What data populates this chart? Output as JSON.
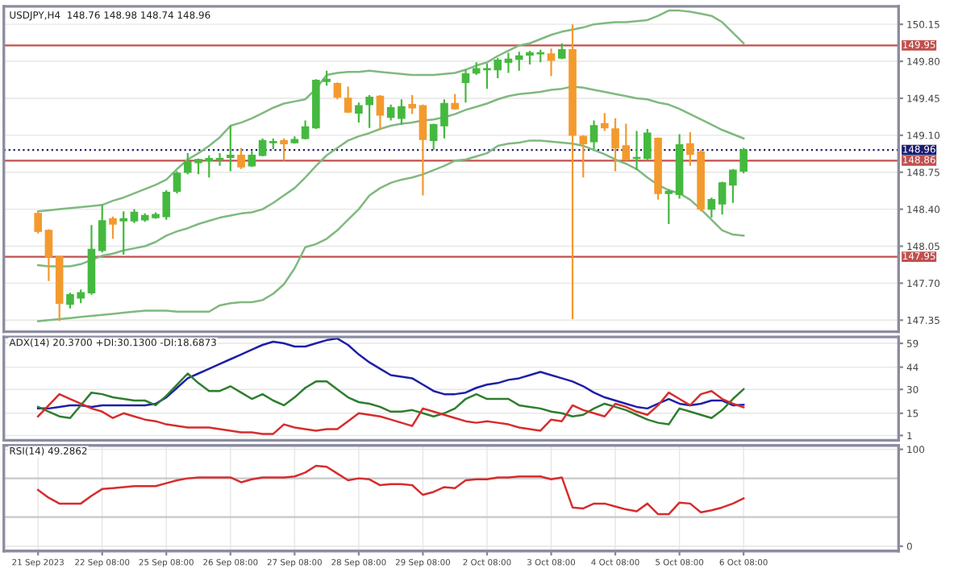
{
  "chart_data": [
    {
      "type": "candlestick",
      "title": "USDJPY,H4  148.76 148.98 148.74 148.96",
      "categories": [
        null,
        null,
        null,
        null,
        null,
        null,
        null,
        null,
        null,
        null,
        null,
        null,
        null,
        null,
        null,
        null,
        null,
        null,
        null,
        null,
        null,
        null,
        null,
        null,
        null,
        null,
        null,
        null,
        null,
        null,
        null,
        null,
        null,
        null,
        null,
        null,
        null,
        null,
        null,
        null,
        null,
        null,
        null,
        null,
        null,
        null,
        null,
        null,
        null,
        null,
        null,
        null,
        null,
        null,
        null,
        null,
        null,
        null,
        null,
        null,
        null,
        null,
        null,
        null,
        null,
        null,
        null
      ],
      "ohlc": [
        [
          148.36,
          148.38,
          148.17,
          148.19
        ],
        [
          148.2,
          148.21,
          147.72,
          147.95
        ],
        [
          147.95,
          147.96,
          147.34,
          147.51
        ],
        [
          147.5,
          147.61,
          147.46,
          147.59
        ],
        [
          147.56,
          147.64,
          147.51,
          147.61
        ],
        [
          147.61,
          148.25,
          147.59,
          148.02
        ],
        [
          148.01,
          148.44,
          147.99,
          148.29
        ],
        [
          148.31,
          148.33,
          148.12,
          148.26
        ],
        [
          148.29,
          148.38,
          147.97,
          148.31
        ],
        [
          148.29,
          148.4,
          148.27,
          148.37
        ],
        [
          148.3,
          148.36,
          148.28,
          148.34
        ],
        [
          148.32,
          148.37,
          148.31,
          148.35
        ],
        [
          148.33,
          148.58,
          148.3,
          148.56
        ],
        [
          148.57,
          148.76,
          148.55,
          148.74
        ],
        [
          148.75,
          148.93,
          148.73,
          148.85
        ],
        [
          148.84,
          148.88,
          148.73,
          148.87
        ],
        [
          148.86,
          148.91,
          148.7,
          148.88
        ],
        [
          148.87,
          148.93,
          148.81,
          148.88
        ],
        [
          148.89,
          149.19,
          148.76,
          148.91
        ],
        [
          148.91,
          148.98,
          148.78,
          148.8
        ],
        [
          148.81,
          148.95,
          148.8,
          148.91
        ],
        [
          148.91,
          149.07,
          148.9,
          149.05
        ],
        [
          149.03,
          149.07,
          148.97,
          149.04
        ],
        [
          149.05,
          149.07,
          148.86,
          149.02
        ],
        [
          149.03,
          149.09,
          149.02,
          149.06
        ],
        [
          149.07,
          149.24,
          149.06,
          149.18
        ],
        [
          149.17,
          149.63,
          149.16,
          149.62
        ],
        [
          149.61,
          149.71,
          149.57,
          149.63
        ],
        [
          149.59,
          149.6,
          149.44,
          149.46
        ],
        [
          149.45,
          149.56,
          149.31,
          149.32
        ],
        [
          149.31,
          149.41,
          149.22,
          149.38
        ],
        [
          149.39,
          149.48,
          149.17,
          149.46
        ],
        [
          149.47,
          149.48,
          149.15,
          149.29
        ],
        [
          149.27,
          149.39,
          149.24,
          149.36
        ],
        [
          149.26,
          149.44,
          149.2,
          149.37
        ],
        [
          149.39,
          149.48,
          149.3,
          149.36
        ],
        [
          149.38,
          149.39,
          148.53,
          149.06
        ],
        [
          149.05,
          149.21,
          148.96,
          149.2
        ],
        [
          149.19,
          149.44,
          149.07,
          149.4
        ],
        [
          149.4,
          149.49,
          149.34,
          149.35
        ],
        [
          149.6,
          149.72,
          149.41,
          149.68
        ],
        [
          149.69,
          149.79,
          149.67,
          149.73
        ],
        [
          149.72,
          149.78,
          149.54,
          149.73
        ],
        [
          149.72,
          149.83,
          149.64,
          149.81
        ],
        [
          149.79,
          149.88,
          149.69,
          149.82
        ],
        [
          149.82,
          149.89,
          149.71,
          149.85
        ],
        [
          149.86,
          149.9,
          149.77,
          149.88
        ],
        [
          149.87,
          149.91,
          149.79,
          149.88
        ],
        [
          149.87,
          149.92,
          149.66,
          149.81
        ],
        [
          149.83,
          149.97,
          149.82,
          149.91
        ],
        [
          149.91,
          150.15,
          147.36,
          149.1
        ],
        [
          149.09,
          149.1,
          148.7,
          149.02
        ],
        [
          149.04,
          149.24,
          148.97,
          149.19
        ],
        [
          149.21,
          149.31,
          149.14,
          149.17
        ],
        [
          149.16,
          149.26,
          148.76,
          148.98
        ],
        [
          149.0,
          149.21,
          148.86,
          148.87
        ],
        [
          148.88,
          149.14,
          148.77,
          148.89
        ],
        [
          148.88,
          149.16,
          148.87,
          149.12
        ],
        [
          149.07,
          149.08,
          148.49,
          148.55
        ],
        [
          148.55,
          148.59,
          148.26,
          148.57
        ],
        [
          148.54,
          149.11,
          148.5,
          149.01
        ],
        [
          149.02,
          149.13,
          148.81,
          148.92
        ],
        [
          148.94,
          148.96,
          148.38,
          148.4
        ],
        [
          148.4,
          148.51,
          148.32,
          148.49
        ],
        [
          148.45,
          148.66,
          148.35,
          148.65
        ],
        [
          148.63,
          148.78,
          148.46,
          148.77
        ],
        [
          148.76,
          148.98,
          148.74,
          148.96
        ]
      ],
      "colors": [
        "#f39a2e",
        "#f39a2e",
        "#f39a2e",
        "#45b93f",
        "#45b93f",
        "#45b93f",
        "#45b93f",
        "#f39a2e",
        "#45b93f",
        "#45b93f",
        "#45b93f",
        "#45b93f",
        "#45b93f",
        "#45b93f",
        "#45b93f",
        "#45b93f",
        "#45b93f",
        "#45b93f",
        "#45b93f",
        "#f39a2e",
        "#45b93f",
        "#45b93f",
        "#45b93f",
        "#f39a2e",
        "#45b93f",
        "#45b93f",
        "#45b93f",
        "#45b93f",
        "#f39a2e",
        "#f39a2e",
        "#45b93f",
        "#45b93f",
        "#f39a2e",
        "#45b93f",
        "#45b93f",
        "#f39a2e",
        "#f39a2e",
        "#45b93f",
        "#45b93f",
        "#f39a2e",
        "#45b93f",
        "#45b93f",
        "#45b93f",
        "#45b93f",
        "#45b93f",
        "#45b93f",
        "#45b93f",
        "#45b93f",
        "#f39a2e",
        "#45b93f",
        "#f39a2e",
        "#f39a2e",
        "#45b93f",
        "#f39a2e",
        "#f39a2e",
        "#f39a2e",
        "#45b93f",
        "#45b93f",
        "#f39a2e",
        "#45b93f",
        "#45b93f",
        "#f39a2e",
        "#f39a2e",
        "#45b93f",
        "#45b93f",
        "#45b93f",
        "#45b93f"
      ],
      "series": [
        {
          "type": "line",
          "color": "#7fb97f",
          "values": [
            148.38,
            148.39,
            148.4,
            148.41,
            148.42,
            148.43,
            148.44,
            148.48,
            148.51,
            148.55,
            148.59,
            148.63,
            148.68,
            148.78,
            148.87,
            148.93,
            149.0,
            149.08,
            149.19,
            149.22,
            149.26,
            149.31,
            149.36,
            149.4,
            149.42,
            149.44,
            149.54,
            149.67,
            149.69,
            149.7,
            149.7,
            149.71,
            149.7,
            149.69,
            149.68,
            149.67,
            149.67,
            149.67,
            149.68,
            149.69,
            149.72,
            149.76,
            149.79,
            149.85,
            149.9,
            149.95,
            149.97,
            150.01,
            150.05,
            150.08,
            150.1,
            150.12,
            150.15,
            150.16,
            150.17,
            150.17,
            150.18,
            150.19,
            150.23,
            150.28,
            150.28,
            150.27,
            150.25,
            150.23,
            150.17,
            150.07,
            149.97
          ]
        },
        {
          "type": "line",
          "color": "#7fb97f",
          "values": [
            147.87,
            147.86,
            147.86,
            147.86,
            147.88,
            147.92,
            147.96,
            147.98,
            148.01,
            148.03,
            148.05,
            148.09,
            148.15,
            148.19,
            148.22,
            148.26,
            148.29,
            148.32,
            148.34,
            148.36,
            148.37,
            148.4,
            148.46,
            148.53,
            148.6,
            148.7,
            148.81,
            148.91,
            148.98,
            149.05,
            149.09,
            149.12,
            149.16,
            149.19,
            149.21,
            149.22,
            149.24,
            149.25,
            149.27,
            149.3,
            149.34,
            149.37,
            149.4,
            149.44,
            149.47,
            149.49,
            149.5,
            149.51,
            149.53,
            149.54,
            149.56,
            149.55,
            149.53,
            149.51,
            149.49,
            149.47,
            149.45,
            149.44,
            149.41,
            149.39,
            149.35,
            149.3,
            149.25,
            149.2,
            149.15,
            149.11,
            149.07
          ]
        },
        {
          "type": "line",
          "color": "#7fb97f",
          "values": [
            147.34,
            147.35,
            147.36,
            147.37,
            147.38,
            147.39,
            147.4,
            147.41,
            147.42,
            147.43,
            147.44,
            147.44,
            147.44,
            147.43,
            147.43,
            147.43,
            147.43,
            147.49,
            147.51,
            147.52,
            147.52,
            147.54,
            147.6,
            147.69,
            147.84,
            148.04,
            148.07,
            148.12,
            148.2,
            148.3,
            148.4,
            148.53,
            148.6,
            148.65,
            148.68,
            148.7,
            148.73,
            148.77,
            148.81,
            148.86,
            148.87,
            148.9,
            148.93,
            149.0,
            149.02,
            149.03,
            149.05,
            149.05,
            149.04,
            149.03,
            149.02,
            149.0,
            148.96,
            148.92,
            148.87,
            148.83,
            148.78,
            148.7,
            148.63,
            148.58,
            148.55,
            148.49,
            148.4,
            148.3,
            148.2,
            148.16,
            148.15
          ]
        }
      ],
      "ylim": [
        147.24,
        150.32
      ],
      "yticks": [
        150.15,
        {
          "value": 149.8,
          "label": "149.80"
        },
        149.45,
        {
          "value": 149.1,
          "label": "149.10"
        },
        148.75,
        {
          "value": 148.4,
          "label": "148.40"
        },
        148.05,
        {
          "value": 147.7,
          "label": "147.70"
        },
        147.35
      ],
      "ref_lines": [
        {
          "axis": "y",
          "value": 149.95,
          "label": "149.95",
          "color": "#c0504d"
        },
        {
          "axis": "y",
          "value": 148.96,
          "label": "148.96",
          "color": "#1c1c6e",
          "line_style": "dotted"
        },
        {
          "axis": "y",
          "value": 148.86,
          "label": "148.86",
          "color": "#c0504d"
        },
        {
          "axis": "y",
          "value": 147.95,
          "label": "147.95",
          "color": "#c0504d"
        }
      ],
      "grid": true,
      "tick_labels": "y"
    },
    {
      "type": "line",
      "title": "ADX(14) 20.3700 +DI:30.1300 -DI:18.6873",
      "categories": [
        null,
        null,
        null,
        null,
        null,
        null,
        null,
        null,
        null,
        null,
        null,
        null,
        null,
        null,
        null,
        null,
        null,
        null,
        null,
        null,
        null,
        null,
        null,
        null,
        null,
        null,
        null,
        null,
        null,
        null,
        null,
        null,
        null,
        null,
        null,
        null,
        null,
        null,
        null,
        null,
        null,
        null,
        null,
        null,
        null,
        null,
        null,
        null,
        null,
        null,
        null,
        null,
        null,
        null,
        null,
        null,
        null,
        null,
        null,
        null,
        null,
        null,
        null,
        null,
        null,
        null,
        null
      ],
      "series": [
        {
          "color": "#1f1fa8",
          "values": [
            18,
            18,
            19,
            20,
            20,
            19,
            20,
            20,
            20,
            20,
            20,
            21,
            25,
            31,
            37,
            40,
            43,
            46,
            49,
            52,
            55,
            58,
            60,
            59,
            57,
            57,
            59,
            61,
            62,
            58,
            52,
            47,
            43,
            39,
            38,
            37,
            33,
            29,
            27,
            27,
            28,
            31,
            33,
            34,
            36,
            37,
            39,
            41,
            39,
            37,
            35,
            32,
            28,
            25,
            23,
            21,
            19,
            18,
            21,
            24,
            21,
            20,
            21,
            23,
            23,
            20,
            20.37
          ]
        },
        {
          "color": "#2f7d2f",
          "values": [
            19,
            16,
            13,
            12,
            20,
            28,
            27,
            25,
            24,
            23,
            23,
            20,
            26,
            33,
            40,
            34,
            29,
            29,
            32,
            28,
            24,
            27,
            23,
            20,
            25,
            31,
            35,
            35,
            30,
            25,
            22,
            21,
            19,
            16,
            16,
            17,
            15,
            13,
            15,
            18,
            24,
            27,
            24,
            24,
            24,
            20,
            19,
            18,
            16,
            15,
            13,
            14,
            18,
            21,
            19,
            17,
            14,
            11,
            9,
            8,
            18,
            16,
            14,
            12,
            17,
            24,
            30.13
          ]
        },
        {
          "color": "#d62d2d",
          "values": [
            13,
            20,
            27,
            24,
            21,
            18,
            16,
            12,
            15,
            13,
            11,
            10,
            8,
            7,
            6,
            6,
            6,
            5,
            4,
            3,
            3,
            2,
            2,
            8,
            6,
            5,
            4,
            5,
            5,
            10,
            15,
            14,
            13,
            11,
            9,
            7,
            18,
            16,
            14,
            12,
            10,
            9,
            10,
            9,
            8,
            6,
            5,
            4,
            11,
            10,
            20,
            17,
            15,
            13,
            21,
            19,
            16,
            14,
            20,
            28,
            24,
            20,
            27,
            29,
            24,
            21,
            18.69
          ]
        }
      ],
      "ylim": [
        -2,
        63
      ],
      "yticks": [
        59,
        44,
        30,
        15,
        1
      ],
      "grid": true,
      "tick_labels": "y"
    },
    {
      "type": "line",
      "title": "RSI(14) 49.2862",
      "categories": [
        "21 Sep 2023",
        null,
        null,
        null,
        null,
        null,
        "22 Sep 08:00",
        null,
        null,
        null,
        null,
        null,
        "25 Sep 08:00",
        null,
        null,
        null,
        null,
        null,
        "26 Sep 08:00",
        null,
        null,
        null,
        null,
        null,
        "27 Sep 08:00",
        null,
        null,
        null,
        null,
        null,
        "28 Sep 08:00",
        null,
        null,
        null,
        null,
        null,
        "29 Sep 08:00",
        null,
        null,
        null,
        null,
        null,
        "2 Oct 08:00",
        null,
        null,
        null,
        null,
        null,
        "3 Oct 08:00",
        null,
        null,
        null,
        null,
        null,
        "4 Oct 08:00",
        null,
        null,
        null,
        null,
        null,
        "5 Oct 08:00",
        null,
        null,
        null,
        null,
        null,
        "6 Oct 08:00"
      ],
      "series": [
        {
          "color": "#d62d2d",
          "values": [
            58,
            50,
            44,
            44,
            44,
            52,
            59,
            60,
            61,
            62,
            62,
            62,
            65,
            68,
            70,
            71,
            71,
            71,
            71,
            66,
            69,
            71,
            71,
            71,
            72,
            76,
            83,
            82,
            75,
            68,
            70,
            69,
            63,
            64,
            64,
            63,
            53,
            56,
            61,
            60,
            68,
            69,
            69,
            71,
            71,
            72,
            72,
            72,
            69,
            71,
            40,
            39,
            44,
            44,
            41,
            38,
            36,
            44,
            33,
            33,
            45,
            44,
            35,
            37,
            40,
            44,
            49.29
          ]
        }
      ],
      "ylim": [
        -5,
        104
      ],
      "yticks": [
        100,
        0
      ],
      "ref_lines": [
        {
          "axis": "y",
          "value": 70,
          "label": null,
          "color": "#c8c8c8"
        },
        {
          "axis": "y",
          "value": 30,
          "label": null,
          "color": "#c8c8c8"
        }
      ],
      "grid": true
    }
  ]
}
